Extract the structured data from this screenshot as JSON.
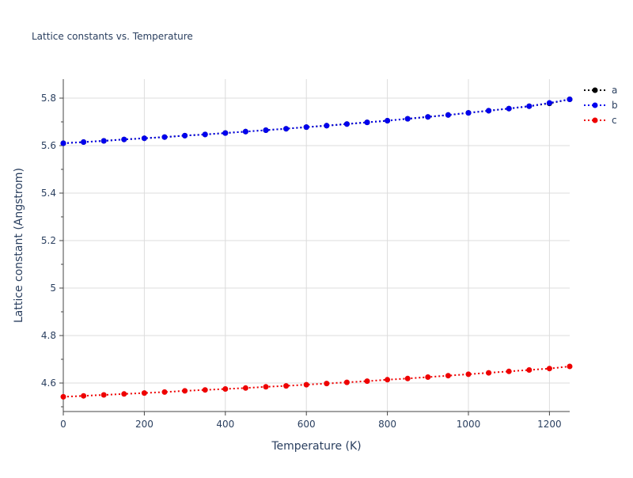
{
  "chart_data": {
    "type": "line",
    "title": "Lattice constants vs. Temperature",
    "xlabel": "Temperature (K)",
    "ylabel": "Lattice constant (Angstrom)",
    "xlim": [
      0,
      1250
    ],
    "ylim": [
      4.48,
      5.88
    ],
    "x_ticks": [
      0,
      200,
      400,
      600,
      800,
      1000,
      1200
    ],
    "y_ticks": [
      4.6,
      4.8,
      5,
      5.2,
      5.4,
      5.6,
      5.8
    ],
    "x_tick_labels": [
      "0",
      "200",
      "400",
      "600",
      "800",
      "1000",
      "1200"
    ],
    "y_tick_labels": [
      "4.6",
      "4.8",
      "5",
      "5.2",
      "5.4",
      "5.6",
      "5.8"
    ],
    "grid": true,
    "legend_position": "top-right",
    "x": [
      0,
      50,
      100,
      150,
      200,
      250,
      300,
      350,
      400,
      450,
      500,
      550,
      600,
      650,
      700,
      750,
      800,
      850,
      900,
      950,
      1000,
      1050,
      1100,
      1150,
      1200,
      1250
    ],
    "series": [
      {
        "name": "a",
        "color": "#000000",
        "values": [
          5.61,
          5.615,
          5.62,
          5.626,
          5.631,
          5.636,
          5.642,
          5.647,
          5.653,
          5.659,
          5.665,
          5.671,
          5.678,
          5.684,
          5.691,
          5.698,
          5.705,
          5.713,
          5.721,
          5.729,
          5.738,
          5.747,
          5.756,
          5.766,
          5.778,
          5.795
        ]
      },
      {
        "name": "b",
        "color": "#0000ee",
        "values": [
          5.61,
          5.615,
          5.62,
          5.626,
          5.631,
          5.636,
          5.642,
          5.647,
          5.653,
          5.659,
          5.665,
          5.671,
          5.678,
          5.684,
          5.691,
          5.698,
          5.705,
          5.713,
          5.721,
          5.729,
          5.738,
          5.747,
          5.756,
          5.766,
          5.78,
          5.795
        ]
      },
      {
        "name": "c",
        "color": "#ee0000",
        "values": [
          4.542,
          4.546,
          4.55,
          4.554,
          4.558,
          4.562,
          4.567,
          4.571,
          4.575,
          4.579,
          4.584,
          4.588,
          4.593,
          4.598,
          4.603,
          4.608,
          4.614,
          4.619,
          4.625,
          4.631,
          4.637,
          4.643,
          4.649,
          4.655,
          4.661,
          4.67
        ]
      }
    ]
  }
}
